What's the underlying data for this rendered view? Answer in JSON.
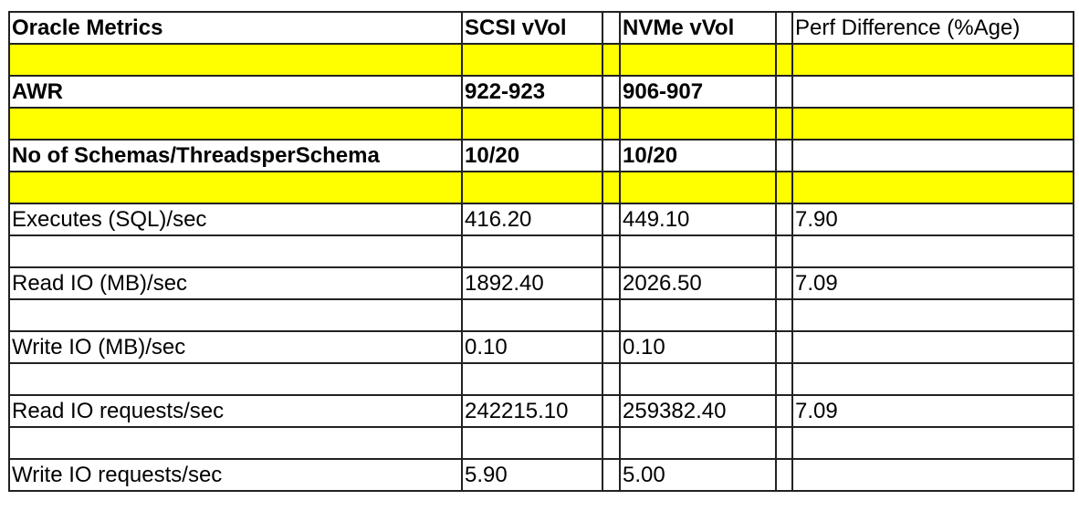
{
  "header": {
    "metric": "Oracle Metrics",
    "scsi": "SCSI vVol",
    "nvme": "NVMe vVol",
    "diff": "Perf Difference (%Age)"
  },
  "highlight_color": "#ffff00",
  "rows": [
    {
      "type": "spacer",
      "highlight": true
    },
    {
      "metric": "AWR",
      "scsi": "922-923",
      "nvme": "906-907",
      "diff": "",
      "bold": true
    },
    {
      "type": "spacer",
      "highlight": true
    },
    {
      "metric": "No of Schemas/ThreadsperSchema",
      "scsi": "10/20",
      "nvme": "10/20",
      "diff": "",
      "bold": true
    },
    {
      "type": "spacer",
      "highlight": true
    },
    {
      "metric": "Executes (SQL)/sec",
      "scsi": "416.20",
      "nvme": "449.10",
      "diff": "7.90"
    },
    {
      "type": "spacer"
    },
    {
      "metric": "Read IO (MB)/sec",
      "scsi": "1892.40",
      "nvme": "2026.50",
      "diff": "7.09"
    },
    {
      "type": "spacer"
    },
    {
      "metric": "Write IO (MB)/sec",
      "scsi": "0.10",
      "nvme": "0.10",
      "diff": ""
    },
    {
      "type": "spacer"
    },
    {
      "metric": "Read IO requests/sec",
      "scsi": "242215.10",
      "nvme": "259382.40",
      "diff": "7.09"
    },
    {
      "type": "spacer"
    },
    {
      "metric": "Write IO requests/sec",
      "scsi": "5.90",
      "nvme": "5.00",
      "diff": ""
    }
  ]
}
